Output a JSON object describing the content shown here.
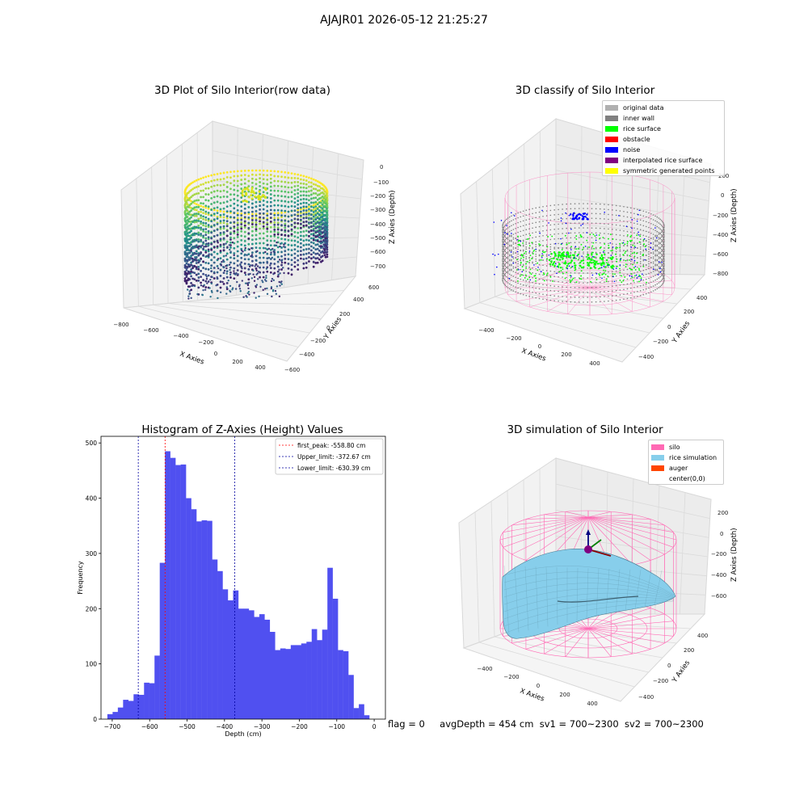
{
  "suptitle": "AJAJR01 2026-05-12 21:25:27",
  "status": {
    "flag": "flag = 0",
    "avg_depth": "avgDepth = 454 cm",
    "sv1": "sv1 = 700~2300",
    "sv2": "sv2 = 700~2300"
  },
  "colors": {
    "hist_bar": "#5050f0",
    "peak_line": "#ff0000",
    "limit_line": "#0000a0",
    "original_data": "#b0b0b0",
    "inner_wall": "#808080",
    "rice_surface": "#00ff00",
    "obstacle": "#ff0000",
    "noise": "#0000ff",
    "interpolated_rice_surface": "#800080",
    "symmetric_generated_points": "#ffff00",
    "silo": "#ff69b4",
    "rice_simulation": "#87ceeb",
    "auger": "#ff4500"
  },
  "chart_data": [
    {
      "type": "scatter",
      "subtype": "3d",
      "title": "3D Plot of Silo Interior(row data)",
      "xlabel": "X Axies",
      "ylabel": "Y Axies",
      "zlabel": "Z Axies (Depth)",
      "x_ticks": [
        "−800",
        "−600",
        "−400",
        "−200",
        "0",
        "200",
        "400"
      ],
      "y_ticks": [
        "600",
        "400",
        "200",
        "0",
        "−200",
        "−400",
        "−600"
      ],
      "z_ticks": [
        "0",
        "−100",
        "−200",
        "−300",
        "−400",
        "−500",
        "−600",
        "−700"
      ],
      "colormap": "viridis"
    },
    {
      "type": "scatter",
      "subtype": "3d",
      "title": "3D classify of Silo Interior",
      "xlabel": "X Axies",
      "ylabel": "Y Axies",
      "zlabel": "Z Axies (Depth)",
      "x_ticks": [
        "−400",
        "−200",
        "0",
        "200",
        "400"
      ],
      "y_ticks": [
        "400",
        "200",
        "0",
        "−200",
        "−400"
      ],
      "z_ticks": [
        "200",
        "0",
        "−200",
        "−400",
        "−600",
        "−800"
      ],
      "legend": [
        "original data",
        "inner wall",
        "rice surface",
        "obstacle",
        "noise",
        "interpolated rice surface",
        "symmetric generated points"
      ],
      "legend_position": "top-right"
    },
    {
      "type": "bar",
      "subtype": "histogram",
      "title": "Histogram of Z-Axies (Height) Values",
      "xlabel": "Depth (cm)",
      "ylabel": "Frequency",
      "xlim": [
        -730,
        30
      ],
      "ylim": [
        0,
        512
      ],
      "x_ticks": [
        -700,
        -600,
        -500,
        -400,
        -300,
        -200,
        -100,
        0
      ],
      "y_ticks": [
        0,
        100,
        200,
        300,
        400,
        500
      ],
      "bin_start": -713,
      "bin_width": 14,
      "values": [
        9,
        13,
        21,
        35,
        33,
        45,
        44,
        66,
        65,
        115,
        283,
        485,
        473,
        460,
        461,
        400,
        380,
        358,
        360,
        359,
        289,
        268,
        235,
        215,
        233,
        200,
        200,
        197,
        185,
        190,
        180,
        158,
        125,
        128,
        127,
        134,
        134,
        137,
        140,
        163,
        143,
        162,
        274,
        218,
        125,
        123,
        80,
        20,
        27,
        7
      ],
      "lines": [
        {
          "label": "first_peak: -558.80 cm",
          "x": -558.8,
          "style": "red"
        },
        {
          "label": "Upper_limit: -372.67 cm",
          "x": -372.67,
          "style": "blue"
        },
        {
          "label": "Lower_limit: -630.39 cm",
          "x": -630.39,
          "style": "blue"
        }
      ],
      "legend_position": "top-right"
    },
    {
      "type": "scatter",
      "subtype": "3d-surface",
      "title": "3D simulation of Silo Interior",
      "xlabel": "X Axies",
      "ylabel": "Y Axies",
      "zlabel": "Z Axies (Depth)",
      "x_ticks": [
        "−400",
        "−200",
        "0",
        "200",
        "400"
      ],
      "y_ticks": [
        "400",
        "200",
        "0",
        "−200",
        "−400"
      ],
      "z_ticks": [
        "200",
        "0",
        "−200",
        "−400",
        "−600"
      ],
      "legend": [
        "silo",
        "rice simulation",
        "auger",
        "center(0,0)"
      ],
      "legend_position": "top-right"
    }
  ]
}
